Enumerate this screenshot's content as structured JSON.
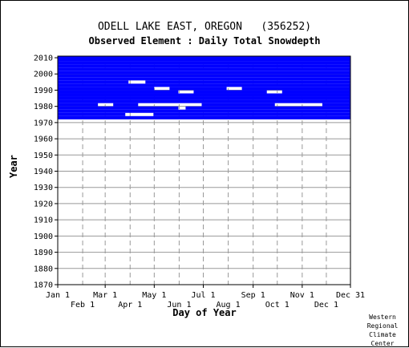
{
  "chart_data": {
    "type": "heatmap",
    "title": "ODELL LAKE EAST, OREGON   (356252)",
    "subtitle": "Observed Element : Daily Total Snowdepth",
    "xlabel": "Day of Year",
    "ylabel": "Year",
    "credit": [
      "Western",
      "Regional",
      "Climate",
      "Center"
    ],
    "x_ticks_top": [
      "Jan 1",
      "Mar 1",
      "May 1",
      "Jul 1",
      "Sep 1",
      "Nov 1",
      "Dec 31"
    ],
    "x_ticks_bottom": [
      "Feb 1",
      "Apr 1",
      "Jun 1",
      "Aug 1",
      "Oct 1",
      "Dec 1"
    ],
    "x_tick_days_top": [
      1,
      60,
      121,
      182,
      244,
      305,
      365
    ],
    "x_tick_days_bottom": [
      32,
      91,
      152,
      213,
      274,
      335
    ],
    "y_ticks": [
      2010,
      2000,
      1990,
      1980,
      1970,
      1960,
      1950,
      1940,
      1930,
      1920,
      1910,
      1900,
      1890,
      1880,
      1870
    ],
    "xlim": [
      1,
      365
    ],
    "ylim": [
      1870,
      2011
    ],
    "grid": true,
    "colors": {
      "data": "#0000ff",
      "grid": "#999999",
      "axis": "#000000"
    },
    "records": [
      {
        "years": [
          1972,
          1973
        ],
        "days": [
          [
            1,
            365
          ]
        ]
      },
      {
        "years": [
          1974,
          1975
        ],
        "days": [
          [
            1,
            84
          ],
          [
            120,
            365
          ]
        ]
      },
      {
        "years": [
          1976,
          1977
        ],
        "days": [
          [
            1,
            365
          ]
        ]
      },
      {
        "years": [
          1978,
          1979
        ],
        "days": [
          [
            1,
            150
          ],
          [
            160,
            365
          ]
        ]
      },
      {
        "years": [
          1980,
          1981
        ],
        "days": [
          [
            1,
            50
          ],
          [
            70,
            100
          ],
          [
            180,
            270
          ],
          [
            330,
            365
          ]
        ]
      },
      {
        "years": [
          1982,
          1983
        ],
        "days": [
          [
            1,
            365
          ]
        ]
      },
      {
        "years": [
          1984,
          1985
        ],
        "days": [
          [
            1,
            365
          ]
        ]
      },
      {
        "years": [
          1986,
          1987
        ],
        "days": [
          [
            1,
            365
          ]
        ]
      },
      {
        "years": [
          1988,
          1989
        ],
        "days": [
          [
            1,
            150
          ],
          [
            170,
            260
          ],
          [
            280,
            365
          ]
        ]
      },
      {
        "years": [
          1990,
          1991
        ],
        "days": [
          [
            1,
            120
          ],
          [
            140,
            210
          ],
          [
            230,
            365
          ]
        ]
      },
      {
        "years": [
          1992,
          1993
        ],
        "days": [
          [
            1,
            365
          ]
        ]
      },
      {
        "years": [
          1994,
          1995
        ],
        "days": [
          [
            1,
            88
          ],
          [
            110,
            365
          ]
        ]
      },
      {
        "years": [
          1996,
          1997
        ],
        "days": [
          [
            1,
            365
          ]
        ]
      },
      {
        "years": [
          1998,
          1999
        ],
        "days": [
          [
            1,
            365
          ]
        ]
      },
      {
        "years": [
          2000,
          2001
        ],
        "days": [
          [
            1,
            365
          ]
        ]
      },
      {
        "years": [
          2002,
          2003
        ],
        "days": [
          [
            1,
            365
          ]
        ]
      },
      {
        "years": [
          2004,
          2005
        ],
        "days": [
          [
            1,
            365
          ]
        ]
      },
      {
        "years": [
          2006,
          2007
        ],
        "days": [
          [
            1,
            365
          ]
        ]
      },
      {
        "years": [
          2008,
          2009
        ],
        "days": [
          [
            1,
            365
          ]
        ]
      },
      {
        "years": [
          2010,
          2010
        ],
        "days": [
          [
            1,
            365
          ]
        ]
      }
    ]
  }
}
